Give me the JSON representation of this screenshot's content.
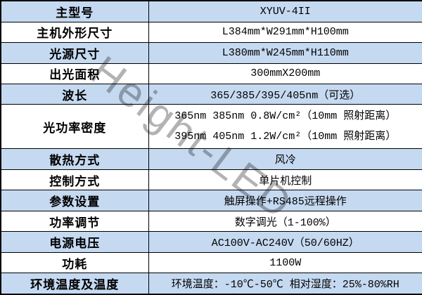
{
  "watermark": {
    "text": "Height-LED"
  },
  "colors": {
    "row_shade": "#c5d9f1",
    "border": "#000000",
    "watermark": "#b3b3b3",
    "text": "#000000"
  },
  "table": {
    "rows": [
      {
        "label": "主型号",
        "value": "XYUV-4II",
        "shaded": true
      },
      {
        "label": "主机外形尺寸",
        "value": "L384mm*W291mm*H100mm",
        "shaded": false
      },
      {
        "label": "光源尺寸",
        "value": "L380mm*W245mm*H110mm",
        "shaded": true
      },
      {
        "label": "出光面积",
        "value": "300mmX200mm",
        "shaded": false
      },
      {
        "label": "波长",
        "value": "365/385/395/405nm（可选）",
        "shaded": true
      },
      {
        "label": "光功率密度",
        "lines": [
          "365nm 385nm  0.8W/cm²（10mm 照射距离）",
          "395nm 405nm  1.2W/cm²（10mm 照射距离）"
        ],
        "shaded": false
      },
      {
        "label": "散热方式",
        "value": "风冷",
        "shaded": true
      },
      {
        "label": "控制方式",
        "value": "单片机控制",
        "shaded": false
      },
      {
        "label": "参数设置",
        "value": "触屏操作+RS485远程操作",
        "shaded": true
      },
      {
        "label": "功率调节",
        "value": "数字调光（1-100%）",
        "shaded": false
      },
      {
        "label": "电源电压",
        "value": "AC100V-AC240V（50/60HZ）",
        "shaded": true
      },
      {
        "label": "功耗",
        "value": "1100W",
        "shaded": false
      },
      {
        "label": "环境温度及温度",
        "value": "环境温度：-10℃-50℃ 相对湿度：25%-80%RH",
        "shaded": true
      }
    ]
  }
}
